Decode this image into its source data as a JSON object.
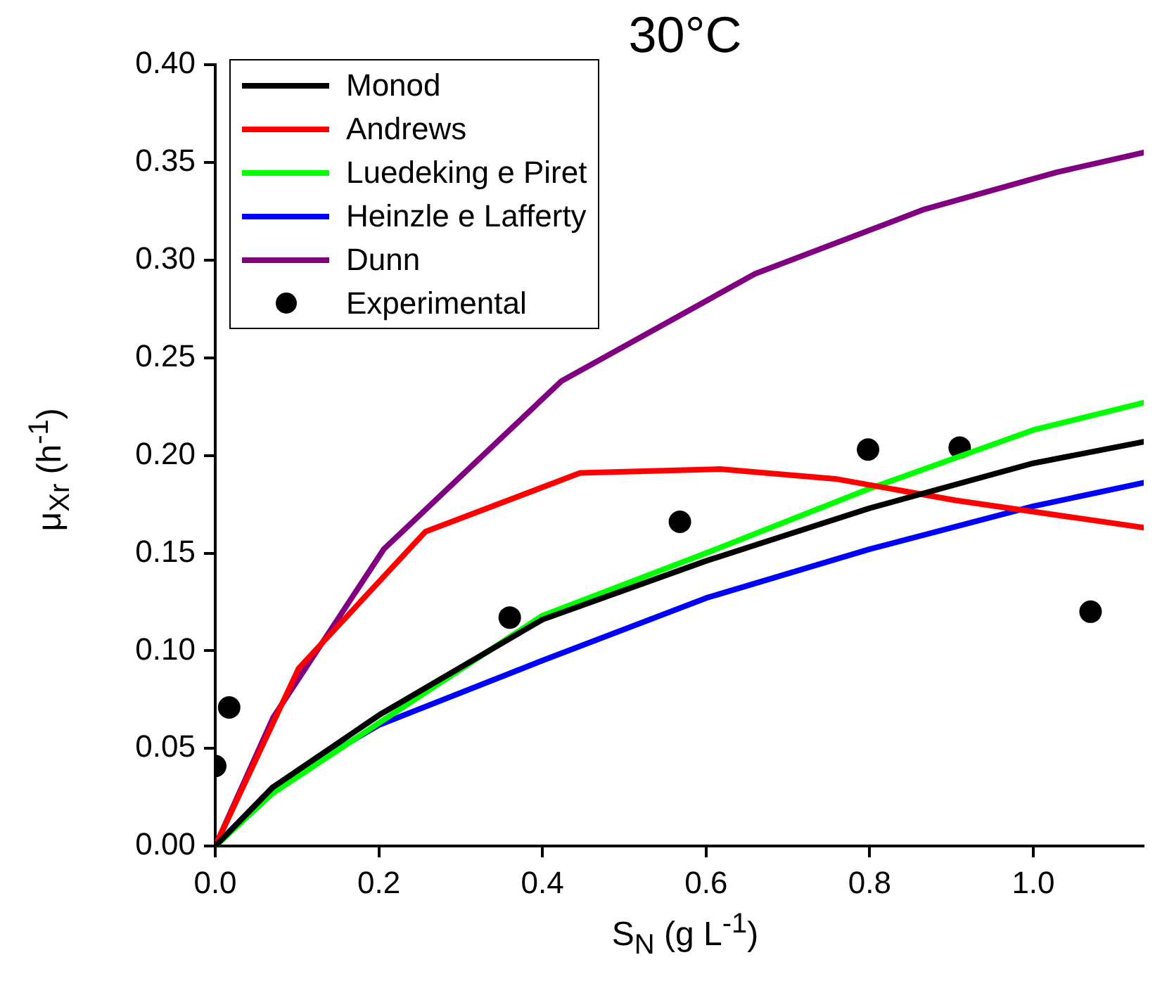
{
  "chart_data": {
    "type": "line",
    "title": "30°C",
    "xlabel": "S$_{N}$ (g L$^{-1}$)",
    "ylabel": "μ$_{Xr}$ (h$^{-1}$)",
    "xlim": [
      0,
      1.135
    ],
    "xticks": [
      {
        "value": 0,
        "label": "0.0"
      },
      {
        "value": 0.2,
        "label": "0.2"
      },
      {
        "value": 0.4,
        "label": "0.4"
      },
      {
        "value": 0.6,
        "label": "0.6"
      },
      {
        "value": 0.8,
        "label": "0.8"
      },
      {
        "value": 1,
        "label": "1.0"
      }
    ],
    "ylim": [
      0,
      0.4
    ],
    "yticks": [
      {
        "value": 0,
        "label": "0.00"
      },
      {
        "value": 0.05,
        "label": "0.05"
      },
      {
        "value": 0.1,
        "label": "0.10"
      },
      {
        "value": 0.15,
        "label": "0.15"
      },
      {
        "value": 0.2,
        "label": "0.20"
      },
      {
        "value": 0.25,
        "label": "0.25"
      },
      {
        "value": 0.3,
        "label": "0.30"
      },
      {
        "value": 0.35,
        "label": "0.35"
      },
      {
        "value": 0.4,
        "label": "0.40"
      }
    ],
    "grid": false,
    "legend": "top left",
    "marker": "none",
    "line_style": "solid",
    "series": [
      {
        "name": "Monod",
        "color": "#000000",
        "x": [
          0,
          0.07,
          0.2,
          0.4,
          0.6,
          0.8,
          1.0,
          1.135
        ],
        "values": [
          0,
          0.03,
          0.067,
          0.116,
          0.146,
          0.173,
          0.196,
          0.207
        ]
      },
      {
        "name": "Andrews",
        "color": "#ff0000",
        "x": [
          0,
          0.102,
          0.257,
          0.446,
          0.617,
          0.758,
          0.905,
          1.135
        ],
        "values": [
          0,
          0.091,
          0.161,
          0.191,
          0.193,
          0.188,
          0.177,
          0.163
        ]
      },
      {
        "name": "Luedeking e Piret",
        "color": "#00ff00",
        "x": [
          0,
          0.07,
          0.2,
          0.4,
          0.6,
          0.8,
          1.0,
          1.135
        ],
        "values": [
          0,
          0.027,
          0.063,
          0.118,
          0.15,
          0.183,
          0.213,
          0.227
        ]
      },
      {
        "name": "Heinzle e Lafferty",
        "color": "#0000ff",
        "x": [
          0,
          0.07,
          0.2,
          0.4,
          0.6,
          0.8,
          1.0,
          1.135
        ],
        "values": [
          0,
          0.03,
          0.062,
          0.095,
          0.127,
          0.152,
          0.174,
          0.186
        ]
      },
      {
        "name": "Dunn",
        "color": "#800080",
        "x": [
          0,
          0.071,
          0.206,
          0.423,
          0.66,
          0.867,
          1.029,
          1.135
        ],
        "values": [
          0,
          0.066,
          0.152,
          0.238,
          0.293,
          0.326,
          0.345,
          0.355
        ]
      },
      {
        "name": "Experimental",
        "type": "scatter",
        "marker": "circle",
        "color": "#000000",
        "x": [
          0,
          0.017,
          0.36,
          0.568,
          0.798,
          0.91,
          1.07
        ],
        "values": [
          0.041,
          0.071,
          0.117,
          0.166,
          0.203,
          0.204,
          0.12
        ]
      }
    ]
  }
}
